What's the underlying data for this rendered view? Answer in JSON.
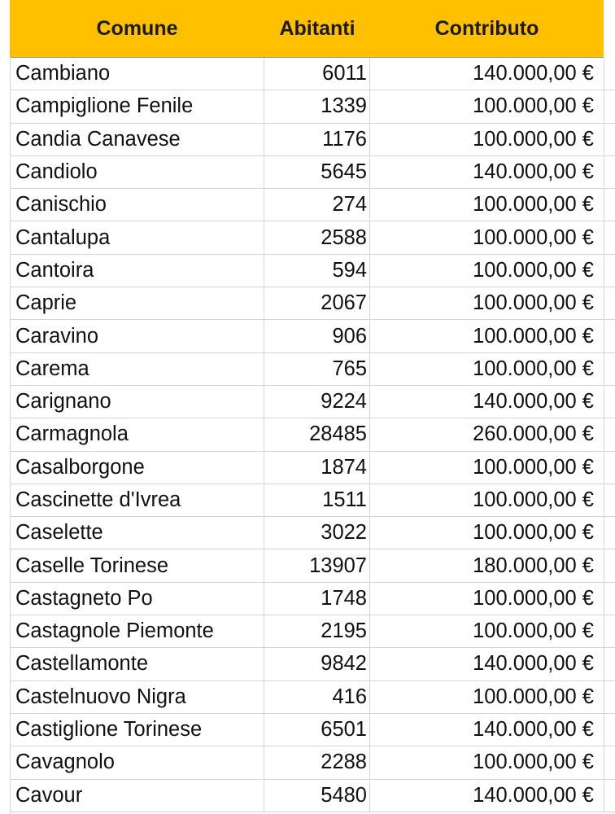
{
  "header": {
    "comune": "Comune",
    "abitanti": "Abitanti",
    "contributo": "Contributo",
    "fill_color": "#ffc000"
  },
  "rows": [
    {
      "comune": "Cambiano",
      "abitanti": "6011",
      "contributo": "140.000,00 €"
    },
    {
      "comune": "Campiglione Fenile",
      "abitanti": "1339",
      "contributo": "100.000,00 €"
    },
    {
      "comune": "Candia Canavese",
      "abitanti": "1176",
      "contributo": "100.000,00 €"
    },
    {
      "comune": "Candiolo",
      "abitanti": "5645",
      "contributo": "140.000,00 €"
    },
    {
      "comune": "Canischio",
      "abitanti": "274",
      "contributo": "100.000,00 €"
    },
    {
      "comune": "Cantalupa",
      "abitanti": "2588",
      "contributo": "100.000,00 €"
    },
    {
      "comune": "Cantoira",
      "abitanti": "594",
      "contributo": "100.000,00 €"
    },
    {
      "comune": "Caprie",
      "abitanti": "2067",
      "contributo": "100.000,00 €"
    },
    {
      "comune": "Caravino",
      "abitanti": "906",
      "contributo": "100.000,00 €"
    },
    {
      "comune": "Carema",
      "abitanti": "765",
      "contributo": "100.000,00 €"
    },
    {
      "comune": "Carignano",
      "abitanti": "9224",
      "contributo": "140.000,00 €"
    },
    {
      "comune": "Carmagnola",
      "abitanti": "28485",
      "contributo": "260.000,00 €"
    },
    {
      "comune": "Casalborgone",
      "abitanti": "1874",
      "contributo": "100.000,00 €"
    },
    {
      "comune": "Cascinette d'Ivrea",
      "abitanti": "1511",
      "contributo": "100.000,00 €"
    },
    {
      "comune": "Caselette",
      "abitanti": "3022",
      "contributo": "100.000,00 €"
    },
    {
      "comune": "Caselle Torinese",
      "abitanti": "13907",
      "contributo": "180.000,00 €"
    },
    {
      "comune": "Castagneto Po",
      "abitanti": "1748",
      "contributo": "100.000,00 €"
    },
    {
      "comune": "Castagnole Piemonte",
      "abitanti": "2195",
      "contributo": "100.000,00 €"
    },
    {
      "comune": "Castellamonte",
      "abitanti": "9842",
      "contributo": "140.000,00 €"
    },
    {
      "comune": "Castelnuovo Nigra",
      "abitanti": "416",
      "contributo": "100.000,00 €"
    },
    {
      "comune": "Castiglione Torinese",
      "abitanti": "6501",
      "contributo": "140.000,00 €"
    },
    {
      "comune": "Cavagnolo",
      "abitanti": "2288",
      "contributo": "100.000,00 €"
    },
    {
      "comune": "Cavour",
      "abitanti": "5480",
      "contributo": "140.000,00 €"
    }
  ]
}
